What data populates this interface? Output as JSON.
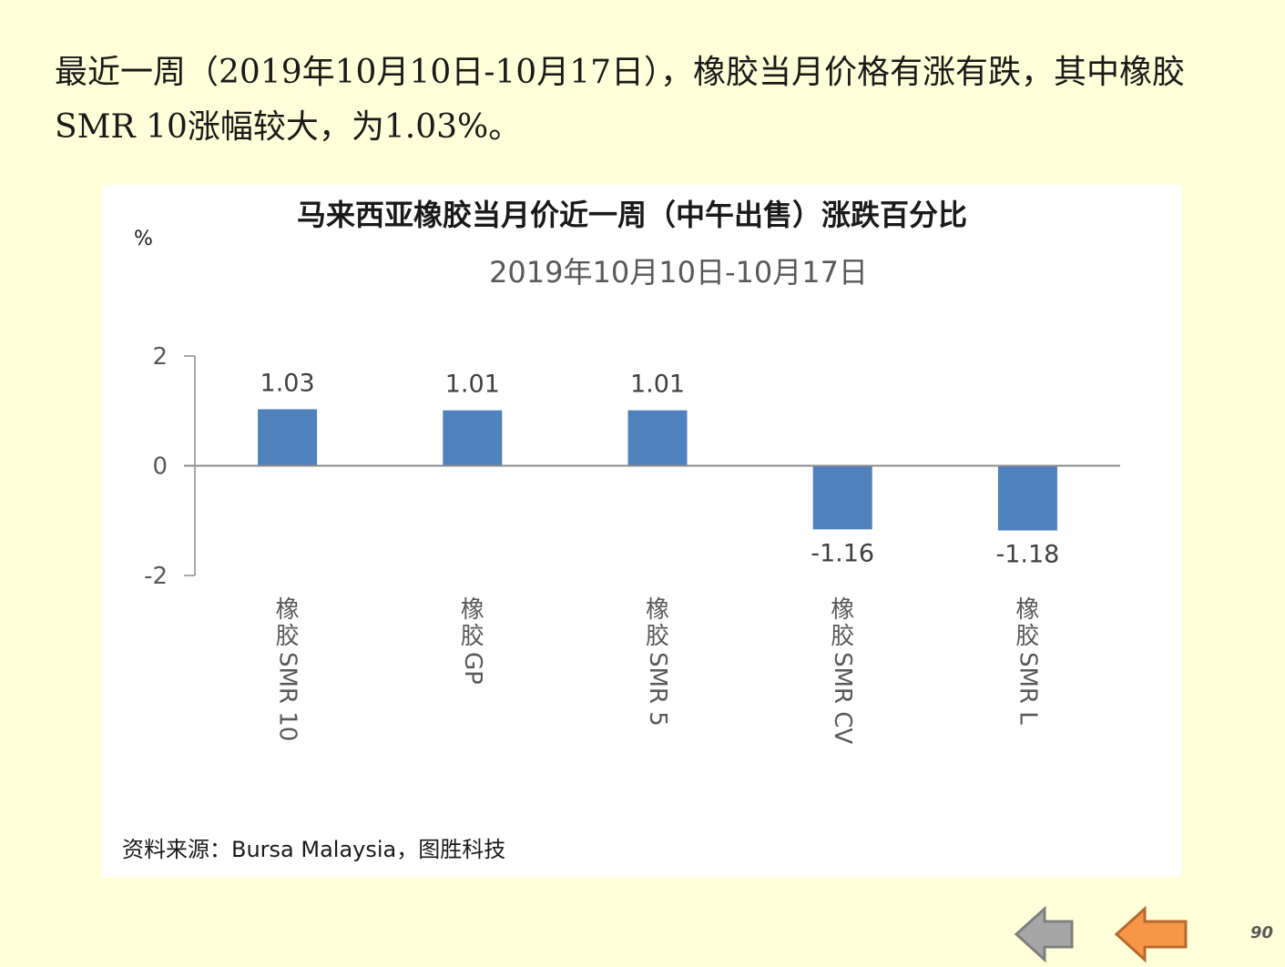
{
  "intro_text": "最近一周（2019年10月10日-10月17日），橡胶当月价格有涨有跌，其中橡胶SMR 10涨幅较大，为1.03%。",
  "chart_data": {
    "type": "bar",
    "title": "马来西亚橡胶当月价近一周（中午出售）涨跌百分比",
    "subtitle": "2019年10月10日-10月17日",
    "ylabel": "%",
    "xlabel": "",
    "categories": [
      "橡胶SMR 10",
      "橡胶GP",
      "橡胶SMR 5",
      "橡胶SMR CV",
      "橡胶SMR L"
    ],
    "values": [
      1.03,
      1.01,
      1.01,
      -1.16,
      -1.18
    ],
    "data_labels": [
      "1.03",
      "1.01",
      "1.01",
      "-1.16",
      "-1.18"
    ],
    "ylim": [
      -2,
      2
    ],
    "yticks": [
      "2",
      "0",
      "-2"
    ],
    "grid": false,
    "legend": "none",
    "bar_color": "#4F81BD",
    "source": "资料来源：Bursa Malaysia，图胜科技"
  },
  "nav": {
    "prev_color": "#A6A6A6",
    "next_color": "#F79646",
    "page_number": "90"
  }
}
